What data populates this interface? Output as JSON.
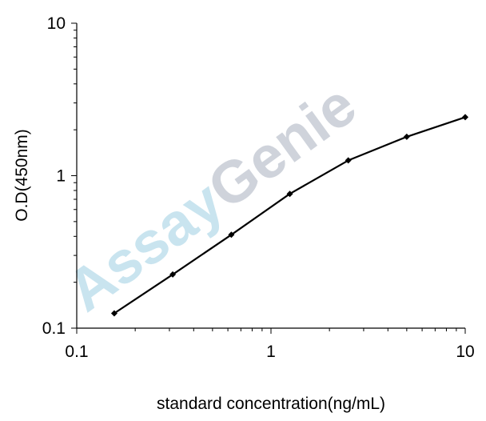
{
  "chart_data": {
    "type": "line",
    "xlabel": "standard concentration(ng/mL)",
    "ylabel": "O.D(450nm)",
    "xscale": "log",
    "yscale": "log",
    "xlim": [
      0.1,
      10
    ],
    "ylim": [
      0.1,
      10
    ],
    "x_ticks": [
      0.1,
      1,
      10
    ],
    "y_ticks": [
      0.1,
      1,
      10
    ],
    "x_tick_labels": [
      "0.1",
      "1",
      "10"
    ],
    "y_tick_labels": [
      "0.1",
      "1",
      "10"
    ],
    "grid": false,
    "marker": "diamond",
    "line_color": "#000000",
    "series": [
      {
        "x": [
          0.156,
          0.312,
          0.625,
          1.25,
          2.5,
          5,
          10
        ],
        "y": [
          0.125,
          0.225,
          0.41,
          0.76,
          1.26,
          1.8,
          2.42
        ]
      }
    ]
  },
  "watermark": {
    "part1": "Assay",
    "part2": "Genie",
    "color1": "#b8dcea",
    "color2": "#bfc5cf"
  }
}
